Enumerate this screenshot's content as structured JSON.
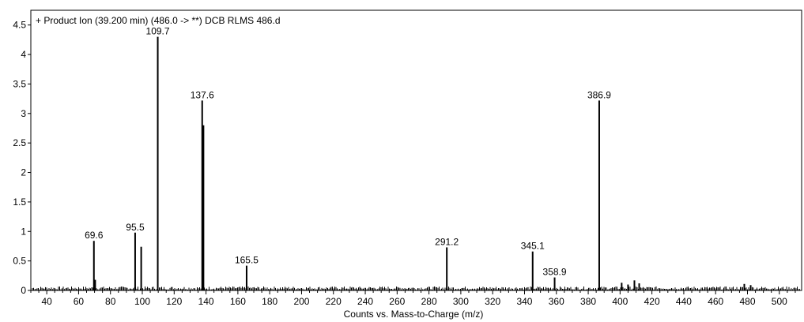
{
  "chart_data": {
    "type": "bar",
    "title": "+ Product Ion (39.200 min) (486.0 -> **) DCB RLMS 486.d",
    "xlabel": "Counts vs. Mass-to-Charge (m/z)",
    "ylabel": "",
    "xlim": [
      30,
      514
    ],
    "ylim": [
      0,
      4.75
    ],
    "x_ticks": [
      "40",
      "60",
      "80",
      "100",
      "120",
      "140",
      "160",
      "180",
      "200",
      "220",
      "240",
      "260",
      "280",
      "300",
      "320",
      "340",
      "360",
      "380",
      "400",
      "420",
      "440",
      "460",
      "480",
      "500"
    ],
    "y_ticks": [
      "0",
      "0.5",
      "1",
      "1.5",
      "2",
      "2.5",
      "3",
      "3.5",
      "4",
      "4.5"
    ],
    "grid": false,
    "legend": "none",
    "peaks": [
      {
        "x": 69.6,
        "y": 0.84,
        "label": "69.6"
      },
      {
        "x": 70.4,
        "y": 0.18,
        "label": ""
      },
      {
        "x": 95.5,
        "y": 0.98,
        "label": "95.5"
      },
      {
        "x": 99.3,
        "y": 0.74,
        "label": ""
      },
      {
        "x": 109.7,
        "y": 4.3,
        "label": "109.7"
      },
      {
        "x": 137.6,
        "y": 3.22,
        "label": "137.6"
      },
      {
        "x": 138.4,
        "y": 2.8,
        "label": ""
      },
      {
        "x": 165.5,
        "y": 0.42,
        "label": "165.5"
      },
      {
        "x": 291.2,
        "y": 0.73,
        "label": "291.2"
      },
      {
        "x": 345.1,
        "y": 0.66,
        "label": "345.1"
      },
      {
        "x": 358.9,
        "y": 0.22,
        "label": "358.9"
      },
      {
        "x": 386.9,
        "y": 3.22,
        "label": "386.9"
      },
      {
        "x": 401.0,
        "y": 0.13,
        "label": ""
      },
      {
        "x": 405.0,
        "y": 0.1,
        "label": ""
      },
      {
        "x": 409.0,
        "y": 0.17,
        "label": ""
      },
      {
        "x": 412.0,
        "y": 0.12,
        "label": ""
      },
      {
        "x": 478.0,
        "y": 0.11,
        "label": ""
      },
      {
        "x": 482.0,
        "y": 0.09,
        "label": ""
      }
    ]
  }
}
